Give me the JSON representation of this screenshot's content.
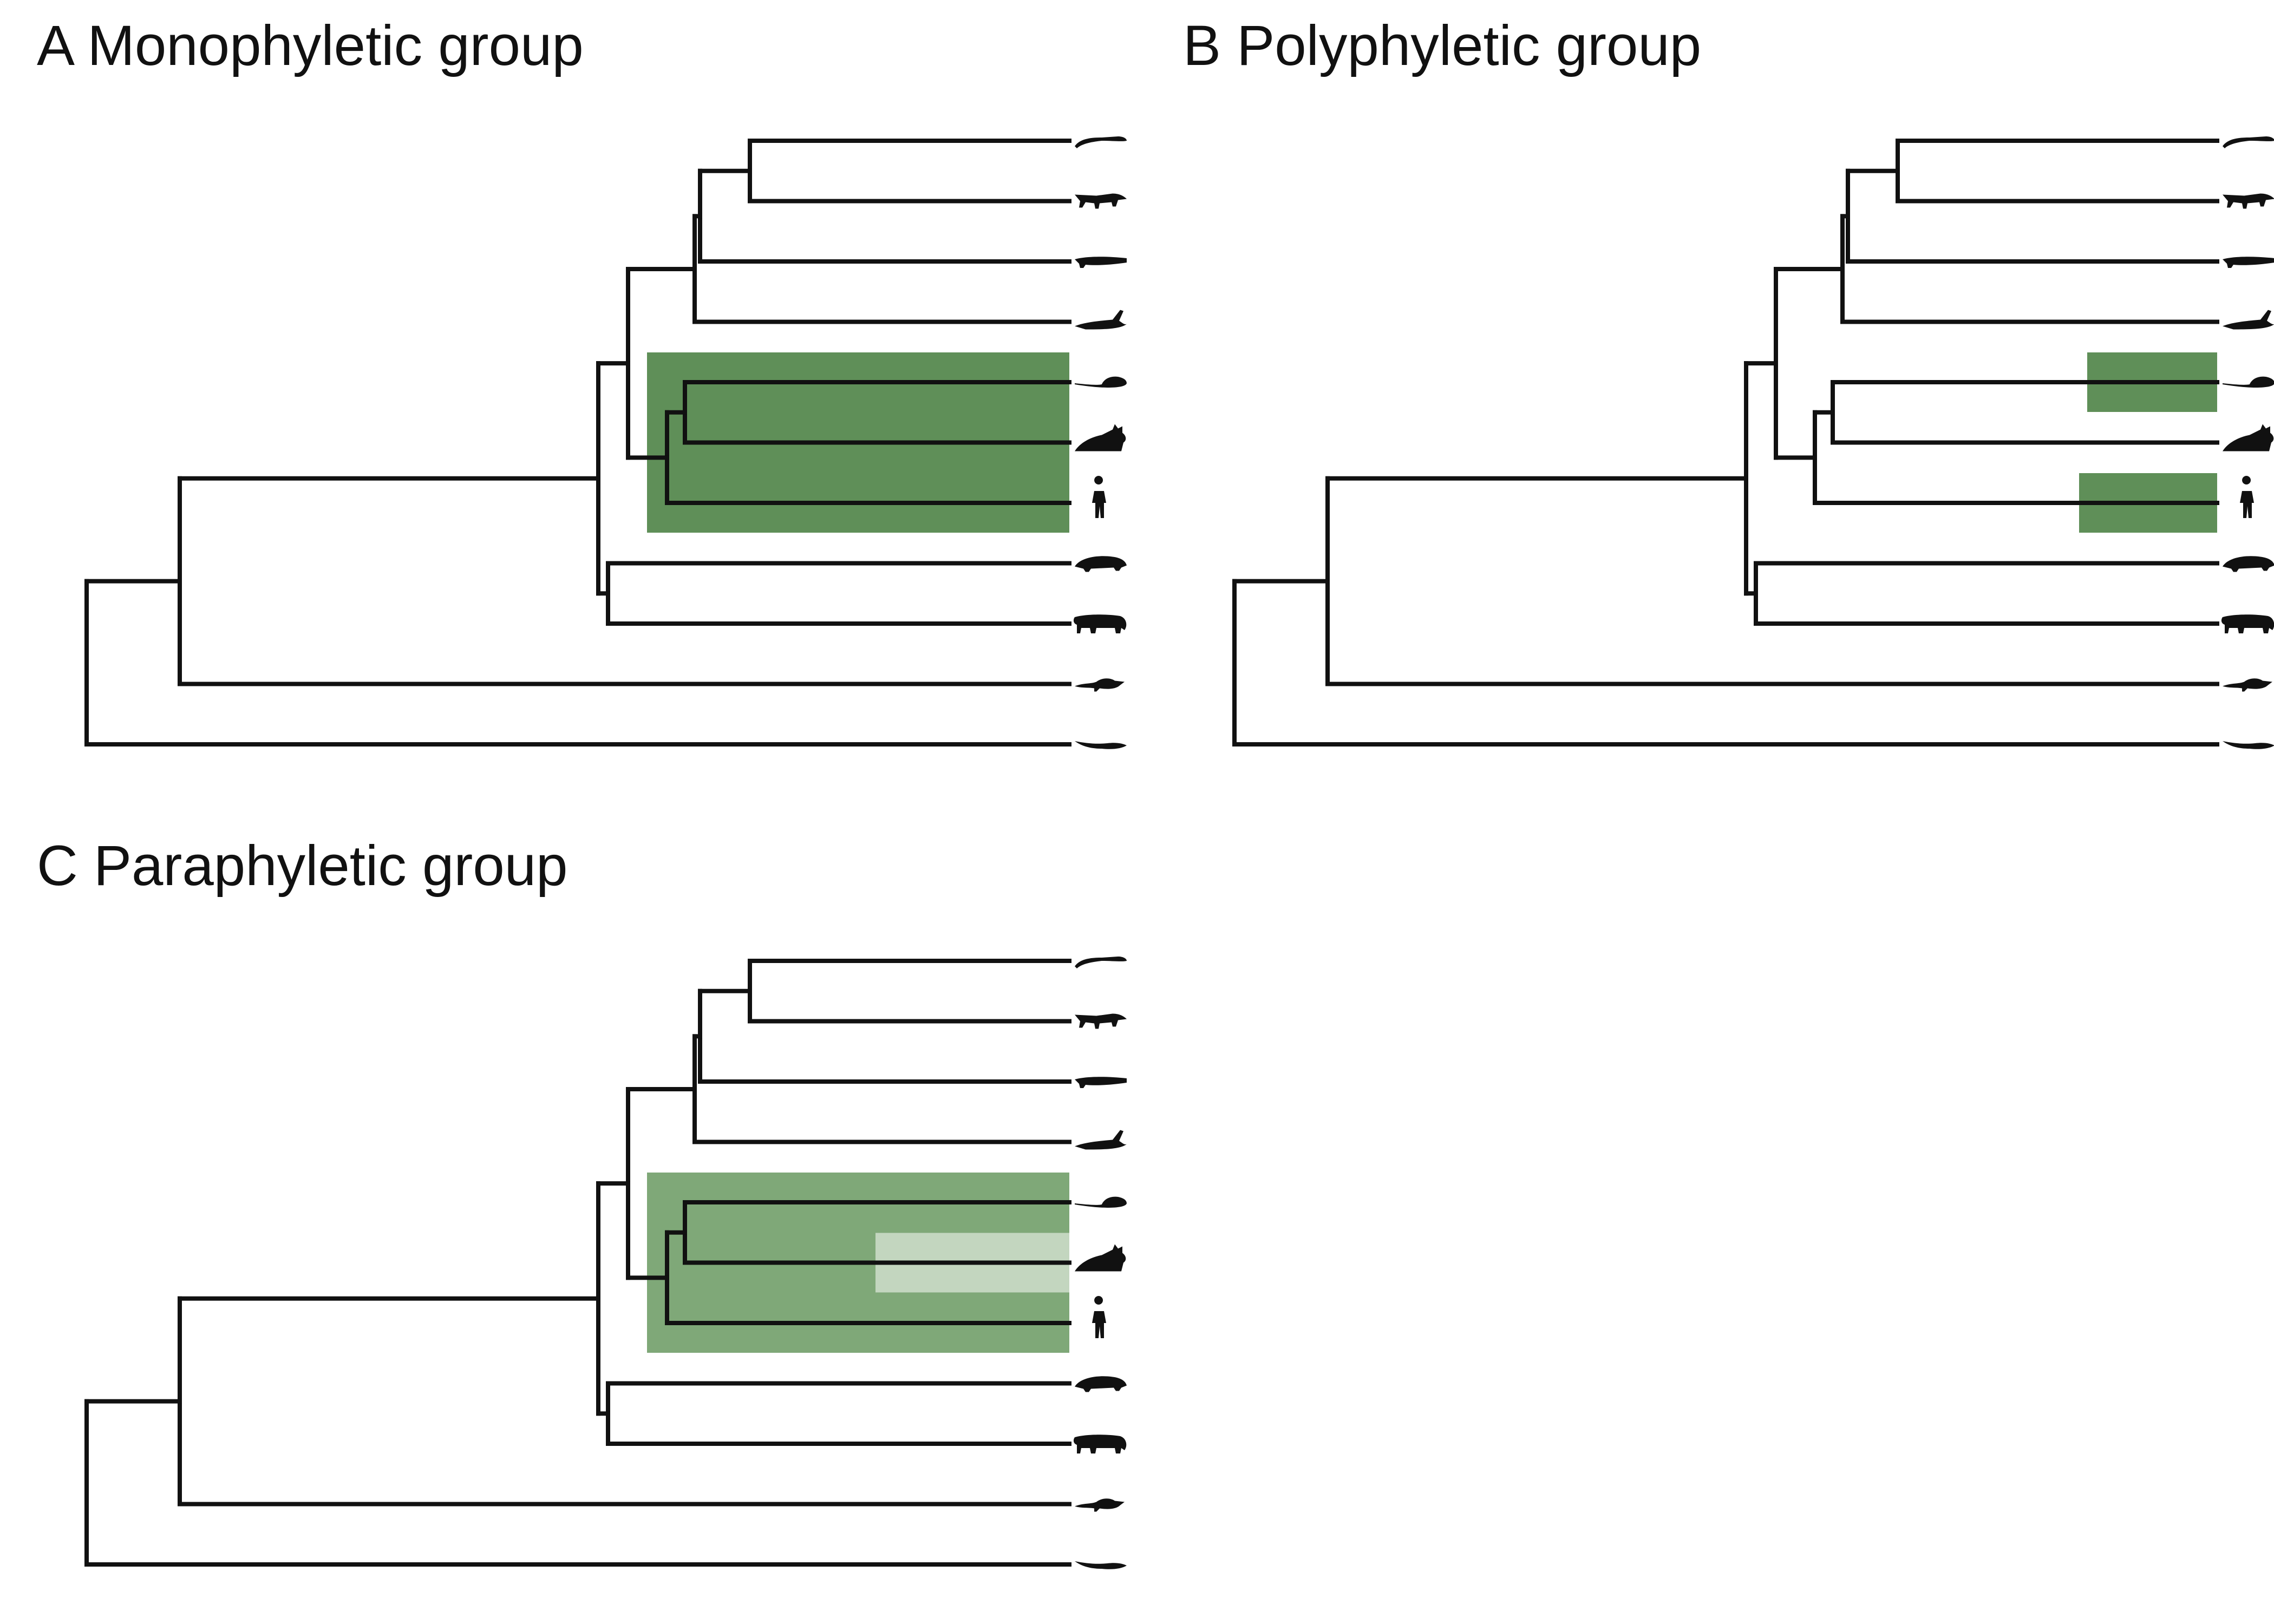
{
  "colors": {
    "highlight": "#5f8f58",
    "highlight_soft": "#7fa878",
    "highlight_pale": "#c3d6bf",
    "branch": "#111111",
    "background": "#ffffff"
  },
  "tree": {
    "tips": [
      "lizard-icon",
      "dinosaur-icon",
      "crocodile-icon",
      "bird-icon",
      "mouse-icon",
      "fox-icon",
      "human-icon",
      "armadillo-icon",
      "elephant-icon",
      "opossum-icon",
      "platypus-icon"
    ]
  },
  "panels": [
    {
      "id": "A",
      "title": "A Monophyletic group",
      "highlight_tips": [
        "mouse-icon",
        "fox-icon",
        "human-icon"
      ],
      "excluded_tips": []
    },
    {
      "id": "B",
      "title": "B Polyphyletic group",
      "highlight_tips": [
        "mouse-icon",
        "human-icon"
      ],
      "excluded_tips": []
    },
    {
      "id": "C",
      "title": "C Paraphyletic group",
      "highlight_tips": [
        "mouse-icon",
        "fox-icon",
        "human-icon"
      ],
      "excluded_tips": [
        "fox-icon"
      ]
    }
  ]
}
